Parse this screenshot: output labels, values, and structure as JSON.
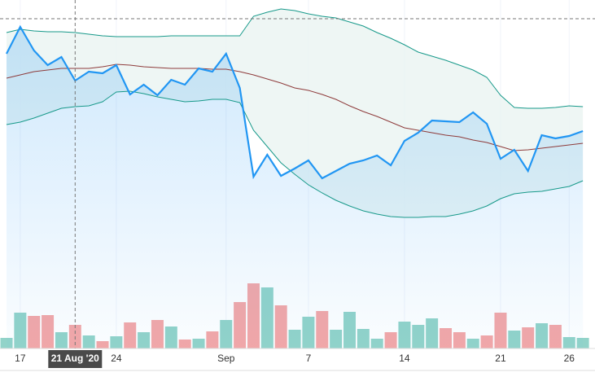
{
  "chart_data": {
    "type": "line",
    "categories": [
      null,
      "17",
      null,
      null,
      null,
      null,
      null,
      null,
      "24",
      null,
      null,
      null,
      null,
      null,
      null,
      null,
      "Sep",
      null,
      null,
      null,
      null,
      null,
      "7",
      null,
      null,
      null,
      null,
      null,
      null,
      "14",
      null,
      null,
      null,
      null,
      null,
      null,
      "21",
      null,
      null,
      null,
      null,
      "26",
      null
    ],
    "ylim": [
      0,
      428
    ],
    "y2lim": [
      0,
      428
    ],
    "band_fill": "#eaf4f1",
    "area_fill": "#2196f3",
    "series": [
      {
        "name": "Upper",
        "color": "#17998a",
        "values": [
          388,
          392,
          390,
          389,
          389,
          388,
          386,
          384,
          383,
          383,
          383,
          383,
          384,
          384,
          384,
          384,
          384,
          384,
          408,
          413,
          417,
          415,
          411,
          408,
          406,
          401,
          396,
          388,
          381,
          373,
          364,
          359,
          354,
          348,
          342,
          333,
          311,
          296,
          295,
          295,
          296,
          298,
          297
        ]
      },
      {
        "name": "Middle",
        "color": "#8e3b3b",
        "values": [
          332,
          336,
          340,
          342,
          344,
          344,
          344,
          346,
          349,
          348,
          346,
          345,
          344,
          344,
          344,
          343,
          343,
          340,
          336,
          331,
          326,
          320,
          317,
          312,
          306,
          298,
          291,
          285,
          278,
          271,
          268,
          265,
          262,
          260,
          256,
          253,
          248,
          243,
          244,
          246,
          248,
          250,
          252
        ]
      },
      {
        "name": "Lower",
        "color": "#17998a",
        "values": [
          275,
          278,
          283,
          289,
          295,
          297,
          298,
          303,
          315,
          316,
          313,
          309,
          306,
          303,
          304,
          306,
          306,
          302,
          268,
          248,
          228,
          214,
          201,
          191,
          182,
          175,
          169,
          165,
          162,
          161,
          161,
          162,
          162,
          165,
          169,
          175,
          184,
          190,
          192,
          193,
          196,
          199,
          206
        ]
      },
      {
        "name": "Price",
        "color": "#2196f3",
        "values": [
          362,
          395,
          366,
          348,
          358,
          329,
          340,
          338,
          348,
          312,
          324,
          311,
          330,
          324,
          344,
          340,
          362,
          320,
          211,
          238,
          212,
          221,
          231,
          209,
          218,
          227,
          231,
          237,
          225,
          255,
          265,
          280,
          279,
          278,
          290,
          276,
          233,
          244,
          218,
          262,
          258,
          261,
          267
        ]
      }
    ],
    "volume": {
      "axis": "y2",
      "values": [
        13,
        44,
        40,
        41,
        20,
        29,
        16,
        9,
        15,
        32,
        20,
        35,
        27,
        11,
        12,
        21,
        35,
        57,
        80,
        75,
        53,
        23,
        39,
        46,
        23,
        45,
        24,
        12,
        20,
        33,
        29,
        37,
        25,
        20,
        12,
        16,
        44,
        22,
        26,
        31,
        29,
        14,
        13
      ],
      "colors": [
        "#92d3c9",
        "#92d3c9",
        "#f4a7a7",
        "#f4a7a7",
        "#92d3c9",
        "#f4a7a7",
        "#92d3c9",
        "#f4a7a7",
        "#92d3c9",
        "#f4a7a7",
        "#92d3c9",
        "#f4a7a7",
        "#92d3c9",
        "#f4a7a7",
        "#92d3c9",
        "#f4a7a7",
        "#92d3c9",
        "#f4a7a7",
        "#f4a7a7",
        "#92d3c9",
        "#f4a7a7",
        "#92d3c9",
        "#92d3c9",
        "#f4a7a7",
        "#92d3c9",
        "#92d3c9",
        "#92d3c9",
        "#92d3c9",
        "#f4a7a7",
        "#92d3c9",
        "#92d3c9",
        "#92d3c9",
        "#f4a7a7",
        "#f4a7a7",
        "#92d3c9",
        "#f4a7a7",
        "#f4a7a7",
        "#92d3c9",
        "#f4a7a7",
        "#92d3c9",
        "#f4a7a7",
        "#92d3c9",
        "#92d3c9"
      ]
    },
    "crosshair": {
      "index": 5,
      "value": 405,
      "label": "21 Aug '20"
    }
  }
}
